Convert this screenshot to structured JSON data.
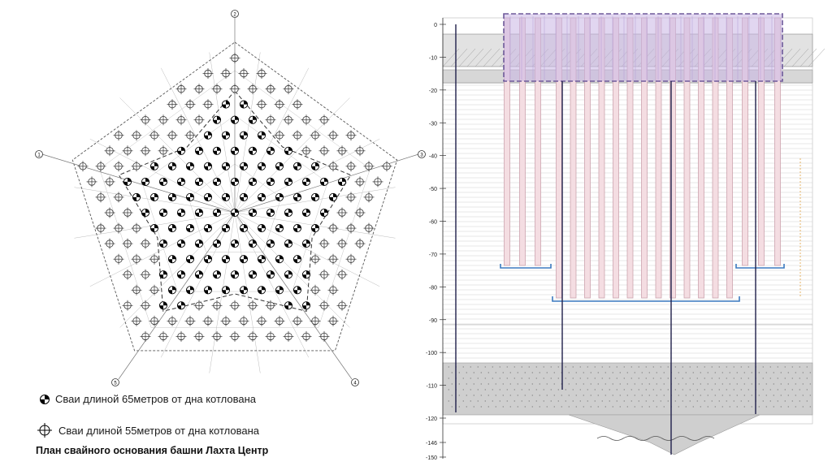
{
  "plan": {
    "axis_labels": [
      "1",
      "2",
      "3",
      "4",
      "5"
    ],
    "legend": {
      "long_piles": "Сваи длиной 65метров от дна котлована",
      "short_piles": "Сваи длиной 55метров от дна котлована"
    },
    "caption": "План свайного основания башни Лахта Центр"
  },
  "section": {
    "depth_ticks": [
      "0",
      "-10",
      "-20",
      "-30",
      "-40",
      "-50",
      "-60",
      "-70",
      "-80",
      "-90",
      "-100",
      "-110",
      "-120",
      "-146",
      "-150"
    ],
    "colors": {
      "raft": "#c8b4e4",
      "raft_border": "#6e5a9a",
      "pile": "#f4dde2",
      "pile_border": "#c79aa6",
      "rock": "#cfcfcf",
      "toe_line": "#3b7ac0"
    }
  }
}
